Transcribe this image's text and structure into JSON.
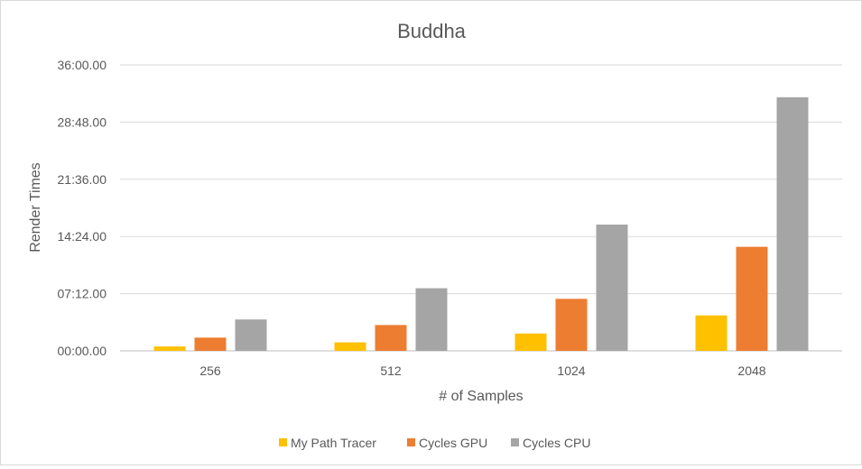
{
  "chart_data": {
    "type": "bar",
    "title": "Buddha",
    "xlabel": "# of Samples",
    "ylabel": "Render Times",
    "categories": [
      "256",
      "512",
      "1024",
      "2048"
    ],
    "y_unit": "seconds",
    "y_ticks": [
      0,
      432,
      864,
      1296,
      1728,
      2160
    ],
    "y_tick_labels": [
      "00:00.00",
      "07:12.00",
      "14:24.00",
      "21:36.00",
      "28:48.00",
      "36:00.00"
    ],
    "ylim": [
      0,
      2160
    ],
    "grid": true,
    "legend_position": "bottom",
    "series": [
      {
        "name": "My Path Tracer",
        "color": "#ffc000",
        "values": [
          33,
          64,
          131,
          268
        ]
      },
      {
        "name": "Cycles GPU",
        "color": "#ed7d31",
        "values": [
          100,
          195,
          393,
          786
        ]
      },
      {
        "name": "Cycles CPU",
        "color": "#a5a5a5",
        "values": [
          237,
          473,
          954,
          1916
        ]
      }
    ]
  }
}
